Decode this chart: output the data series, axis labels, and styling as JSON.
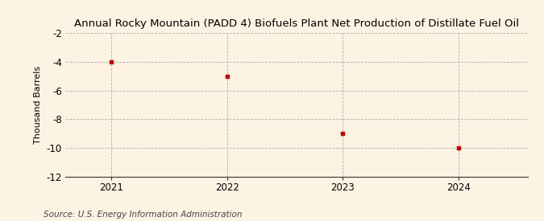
{
  "title": "Annual Rocky Mountain (PADD 4) Biofuels Plant Net Production of Distillate Fuel Oil",
  "ylabel": "Thousand Barrels",
  "source": "Source: U.S. Energy Information Administration",
  "x": [
    2021,
    2022,
    2023,
    2024
  ],
  "y": [
    -4,
    -5,
    -9,
    -10
  ],
  "xlim": [
    2020.6,
    2024.6
  ],
  "ylim": [
    -12,
    -2
  ],
  "yticks": [
    -12,
    -10,
    -8,
    -6,
    -4,
    -2
  ],
  "xticks": [
    2021,
    2022,
    2023,
    2024
  ],
  "marker_color": "#cc0000",
  "marker": "s",
  "marker_size": 3.5,
  "bg_color": "#fdf3e3",
  "grid_color": "#b0b0b0",
  "title_fontsize": 9.5,
  "label_fontsize": 8,
  "tick_fontsize": 8.5,
  "source_fontsize": 7.5
}
